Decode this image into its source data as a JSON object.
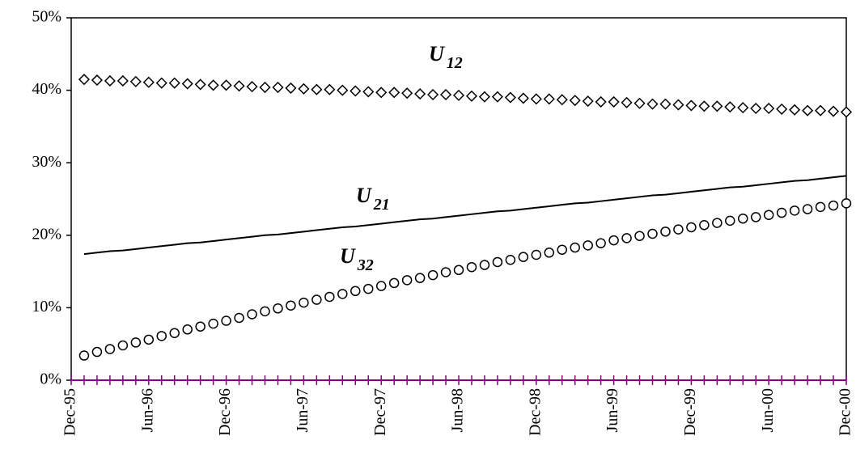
{
  "chart_data": {
    "type": "line",
    "categories": [
      "Dec-95",
      null,
      null,
      null,
      null,
      null,
      "Jun-96",
      null,
      null,
      null,
      null,
      null,
      "Dec-96",
      null,
      null,
      null,
      null,
      null,
      "Jun-97",
      null,
      null,
      null,
      null,
      null,
      "Dec-97",
      null,
      null,
      null,
      null,
      null,
      "Jun-98",
      null,
      null,
      null,
      null,
      null,
      "Dec-98",
      null,
      null,
      null,
      null,
      null,
      "Jun-99",
      null,
      null,
      null,
      null,
      null,
      "Dec-99",
      null,
      null,
      null,
      null,
      null,
      "Jun-00",
      null,
      null,
      null,
      null,
      null,
      "Dec-00"
    ],
    "series": [
      {
        "name": "U12",
        "color": "#000000",
        "marker": "diamond",
        "values": [
          null,
          41.5,
          41.4,
          41.3,
          41.3,
          41.2,
          41.1,
          41.0,
          41.0,
          40.9,
          40.8,
          40.7,
          40.7,
          40.6,
          40.5,
          40.4,
          40.4,
          40.3,
          40.2,
          40.1,
          40.1,
          40.0,
          39.9,
          39.8,
          39.7,
          39.7,
          39.6,
          39.5,
          39.4,
          39.4,
          39.3,
          39.2,
          39.1,
          39.1,
          39.0,
          38.9,
          38.8,
          38.8,
          38.7,
          38.6,
          38.5,
          38.4,
          38.4,
          38.3,
          38.2,
          38.1,
          38.1,
          38.0,
          37.9,
          37.8,
          37.8,
          37.7,
          37.6,
          37.5,
          37.5,
          37.4,
          37.3,
          37.2,
          37.2,
          37.1,
          37.0
        ]
      },
      {
        "name": "U21",
        "color": "#000000",
        "marker": "none",
        "values": [
          null,
          17.4,
          17.6,
          17.8,
          17.9,
          18.1,
          18.3,
          18.5,
          18.7,
          18.9,
          19.0,
          19.2,
          19.4,
          19.6,
          19.8,
          20.0,
          20.1,
          20.3,
          20.5,
          20.7,
          20.9,
          21.1,
          21.2,
          21.4,
          21.6,
          21.8,
          22.0,
          22.2,
          22.3,
          22.5,
          22.7,
          22.9,
          23.1,
          23.3,
          23.4,
          23.6,
          23.8,
          24.0,
          24.2,
          24.4,
          24.5,
          24.7,
          24.9,
          25.1,
          25.3,
          25.5,
          25.6,
          25.8,
          26.0,
          26.2,
          26.4,
          26.6,
          26.7,
          26.9,
          27.1,
          27.3,
          27.5,
          27.6,
          27.8,
          28.0,
          28.2
        ]
      },
      {
        "name": "U32",
        "color": "#000000",
        "marker": "circle",
        "values": [
          null,
          3.4,
          3.9,
          4.3,
          4.8,
          5.2,
          5.6,
          6.1,
          6.5,
          7.0,
          7.4,
          7.8,
          8.2,
          8.6,
          9.1,
          9.5,
          9.9,
          10.3,
          10.7,
          11.1,
          11.5,
          11.9,
          12.3,
          12.6,
          13.0,
          13.4,
          13.8,
          14.1,
          14.5,
          14.9,
          15.2,
          15.6,
          15.9,
          16.3,
          16.6,
          17.0,
          17.3,
          17.6,
          18.0,
          18.3,
          18.6,
          18.9,
          19.3,
          19.6,
          19.9,
          20.2,
          20.5,
          20.8,
          21.1,
          21.4,
          21.7,
          22.0,
          22.3,
          22.5,
          22.8,
          23.1,
          23.4,
          23.6,
          23.9,
          24.1,
          24.4
        ]
      }
    ],
    "ylim": [
      0,
      50
    ],
    "yticks": [
      {
        "value": 0,
        "label": "0%"
      },
      {
        "value": 10,
        "label": "10%"
      },
      {
        "value": 20,
        "label": "20%"
      },
      {
        "value": 30,
        "label": "30%"
      },
      {
        "value": 40,
        "label": "40%"
      },
      {
        "value": 50,
        "label": "50%"
      }
    ],
    "axis_color": "#800080"
  }
}
